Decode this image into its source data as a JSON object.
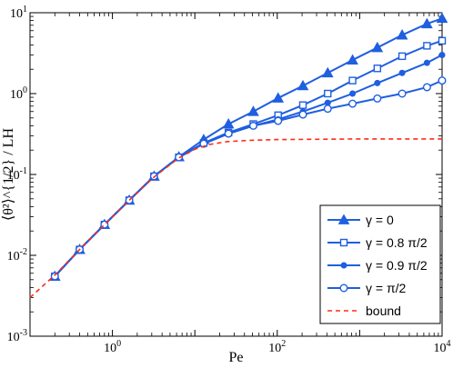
{
  "chart_data": {
    "type": "line",
    "xlabel": "Pe",
    "ylabel": "⟨θ²⟩^{1/2} / LH",
    "x_scale": "log",
    "y_scale": "log",
    "xlim": [
      0.1,
      10000
    ],
    "ylim": [
      0.001,
      10
    ],
    "grid": false,
    "legend_position": "bottom-right",
    "x_ticks": [
      {
        "value": 1,
        "base": "10",
        "exp": "0"
      },
      {
        "value": 100,
        "base": "10",
        "exp": "2"
      },
      {
        "value": 10000,
        "base": "10",
        "exp": "4"
      }
    ],
    "y_ticks": [
      {
        "value": 0.001,
        "base": "10",
        "exp": "-3"
      },
      {
        "value": 0.01,
        "base": "10",
        "exp": "-2"
      },
      {
        "value": 0.1,
        "base": "10",
        "exp": "-1"
      },
      {
        "value": 1,
        "base": "10",
        "exp": "0"
      },
      {
        "value": 10,
        "base": "10",
        "exp": "1"
      }
    ],
    "colors": {
      "series": "#1f5fe0",
      "bound": "#ff2a1a"
    },
    "series": [
      {
        "name": "γ = 0",
        "marker": "triangle",
        "x": [
          0.2,
          0.4,
          0.8,
          1.6,
          3.2,
          6.4,
          12.8,
          25.6,
          51.2,
          102.4,
          204.8,
          409.6,
          819.2,
          1638.4,
          3276.8,
          6553.6,
          10000
        ],
        "y": [
          0.0055,
          0.0118,
          0.024,
          0.048,
          0.095,
          0.165,
          0.27,
          0.42,
          0.6,
          0.88,
          1.25,
          1.8,
          2.6,
          3.7,
          5.3,
          7.3,
          8.5
        ]
      },
      {
        "name": "γ = 0.8 π/2",
        "marker": "square",
        "x": [
          0.2,
          0.4,
          0.8,
          1.6,
          3.2,
          6.4,
          12.8,
          25.6,
          51.2,
          102.4,
          204.8,
          409.6,
          819.2,
          1638.4,
          3276.8,
          6553.6,
          10000
        ],
        "y": [
          0.0055,
          0.0118,
          0.024,
          0.048,
          0.095,
          0.163,
          0.245,
          0.33,
          0.42,
          0.54,
          0.72,
          1.0,
          1.45,
          2.05,
          2.9,
          3.9,
          4.5
        ]
      },
      {
        "name": "γ = 0.9 π/2",
        "marker": "dot",
        "x": [
          0.2,
          0.4,
          0.8,
          1.6,
          3.2,
          6.4,
          12.8,
          25.6,
          51.2,
          102.4,
          204.8,
          409.6,
          819.2,
          1638.4,
          3276.8,
          6553.6,
          10000
        ],
        "y": [
          0.0055,
          0.0118,
          0.024,
          0.048,
          0.095,
          0.163,
          0.24,
          0.32,
          0.4,
          0.48,
          0.6,
          0.77,
          1.0,
          1.35,
          1.8,
          2.4,
          3.0
        ]
      },
      {
        "name": "γ = π/2",
        "marker": "circle",
        "x": [
          0.2,
          0.4,
          0.8,
          1.6,
          3.2,
          6.4,
          12.8,
          25.6,
          51.2,
          102.4,
          204.8,
          409.6,
          819.2,
          1638.4,
          3276.8,
          6553.6,
          10000
        ],
        "y": [
          0.0055,
          0.0118,
          0.024,
          0.048,
          0.095,
          0.163,
          0.24,
          0.32,
          0.4,
          0.46,
          0.55,
          0.65,
          0.75,
          0.87,
          1.0,
          1.2,
          1.45
        ]
      },
      {
        "name": "bound",
        "marker": "none",
        "style": "dashed",
        "x": [
          0.1,
          0.2,
          0.4,
          0.8,
          1.6,
          3.2,
          6.4,
          10,
          15,
          25,
          50,
          100,
          1000,
          10000
        ],
        "y": [
          0.003,
          0.0057,
          0.0118,
          0.024,
          0.048,
          0.093,
          0.16,
          0.205,
          0.235,
          0.255,
          0.265,
          0.27,
          0.275,
          0.275
        ]
      }
    ]
  }
}
